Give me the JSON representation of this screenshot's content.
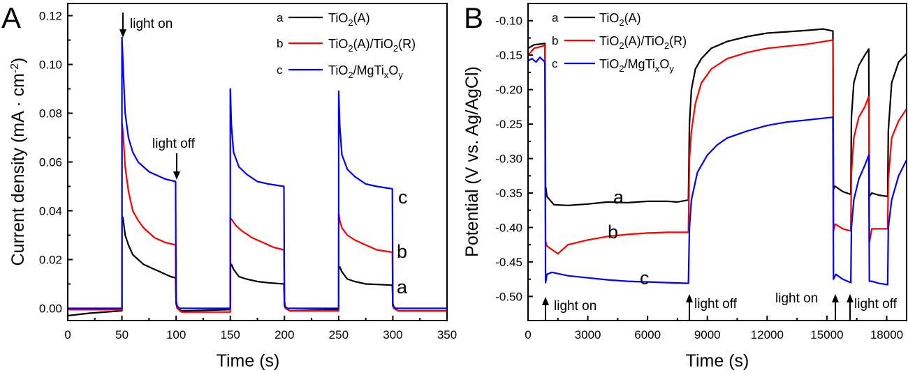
{
  "chart_data": [
    {
      "panel": "A",
      "type": "line",
      "xlabel": "Time (s)",
      "ylabel": "Current density (mA · cm",
      "ylabel_sup": "-2",
      "ylabel_end": ")",
      "xlim": [
        0,
        350
      ],
      "ylim": [
        -0.005,
        0.125
      ],
      "xticks": [
        "0",
        "50",
        "100",
        "150",
        "200",
        "250",
        "300",
        "350"
      ],
      "yticks": [
        "0.00",
        "0.02",
        "0.04",
        "0.06",
        "0.08",
        "0.10",
        "0.12"
      ],
      "legend": [
        {
          "key": "a",
          "base": "TiO",
          "sub1": "2",
          "tail": "(A)",
          "color": "#000000"
        },
        {
          "key": "b",
          "base": "TiO",
          "sub1": "2",
          "mid": "(A)/TiO",
          "sub2": "2",
          "tail": "(R)",
          "color": "#ff0000"
        },
        {
          "key": "c",
          "base": "TiO",
          "sub1": "2",
          "mid": "/MgTi",
          "sub2": "x",
          "mid2": "O",
          "sub3": "y",
          "color": "#0000ff"
        }
      ],
      "annotations": {
        "light_on": "light on",
        "light_off": "light off"
      },
      "curve_labels": [
        "a",
        "b",
        "c"
      ],
      "series": [
        {
          "name": "a",
          "color": "#000000",
          "x": [
            0,
            20,
            50,
            50,
            51,
            53,
            56,
            60,
            65,
            70,
            75,
            80,
            85,
            90,
            95,
            99.5,
            100,
            101,
            105,
            110,
            150,
            150,
            151,
            153,
            158,
            165,
            175,
            185,
            199.5,
            200,
            201,
            205,
            250,
            250,
            251,
            253,
            258,
            265,
            275,
            285,
            299.5,
            300,
            301,
            305,
            350
          ],
          "y": [
            -0.003,
            -0.002,
            -0.001,
            0.038,
            0.037,
            0.03,
            0.026,
            0.022,
            0.02,
            0.018,
            0.017,
            0.016,
            0.015,
            0.014,
            0.013,
            0.0125,
            0.002,
            0.0,
            -0.001,
            -0.001,
            -0.0005,
            0.017,
            0.018,
            0.016,
            0.013,
            0.012,
            0.011,
            0.0105,
            0.01,
            0.001,
            0.0,
            -0.001,
            -0.0005,
            0.016,
            0.017,
            0.015,
            0.012,
            0.011,
            0.01,
            0.0098,
            0.0095,
            0.001,
            0.0,
            -0.001,
            -0.001
          ]
        },
        {
          "name": "b",
          "color": "#ff0000",
          "x": [
            0,
            50,
            50,
            51,
            53,
            56,
            60,
            65,
            70,
            75,
            80,
            85,
            90,
            95,
            99.5,
            100,
            101,
            105,
            150,
            150,
            152,
            155,
            160,
            170,
            180,
            190,
            199.5,
            200,
            201,
            205,
            250,
            250,
            251,
            253,
            258,
            265,
            275,
            285,
            299.5,
            300,
            301,
            305,
            350
          ],
          "y": [
            -0.0005,
            -0.0005,
            0.076,
            0.072,
            0.058,
            0.048,
            0.04,
            0.036,
            0.033,
            0.031,
            0.029,
            0.028,
            0.027,
            0.0265,
            0.026,
            0.004,
            0.0,
            -0.0015,
            -0.0015,
            0.037,
            0.036,
            0.034,
            0.032,
            0.029,
            0.027,
            0.025,
            0.024,
            0.003,
            0.0,
            -0.001,
            -0.001,
            0.039,
            0.036,
            0.033,
            0.03,
            0.028,
            0.026,
            0.024,
            0.023,
            0.002,
            0.0,
            -0.001,
            -0.001
          ]
        },
        {
          "name": "c",
          "color": "#0000ff",
          "x": [
            0,
            50,
            50,
            51,
            53,
            56,
            60,
            65,
            70,
            75,
            80,
            85,
            90,
            95,
            99.5,
            100,
            101,
            103,
            150,
            150,
            151,
            153,
            158,
            165,
            175,
            185,
            199.5,
            200,
            201,
            203,
            250,
            250,
            251,
            253,
            258,
            265,
            275,
            285,
            299.5,
            300,
            301,
            303,
            350
          ],
          "y": [
            0.0,
            0.0,
            0.111,
            0.1,
            0.08,
            0.07,
            0.064,
            0.06,
            0.058,
            0.056,
            0.055,
            0.054,
            0.053,
            0.0525,
            0.052,
            0.003,
            0.001,
            0.0,
            0.0,
            0.09,
            0.075,
            0.064,
            0.058,
            0.055,
            0.052,
            0.051,
            0.05,
            0.002,
            0.0005,
            0.0,
            0.0,
            0.089,
            0.075,
            0.063,
            0.057,
            0.054,
            0.051,
            0.05,
            0.049,
            0.002,
            0.0005,
            0.0,
            0.0
          ]
        }
      ]
    },
    {
      "panel": "B",
      "type": "line",
      "xlabel": "Time (s)",
      "ylabel": "Potential (V vs. Ag/AgCl)",
      "xlim": [
        0,
        19000
      ],
      "ylim": [
        -0.535,
        -0.075
      ],
      "xticks": [
        "0",
        "3000",
        "6000",
        "9000",
        "12000",
        "15000",
        "18000"
      ],
      "yticks": [
        "-0.50",
        "-0.45",
        "-0.40",
        "-0.35",
        "-0.30",
        "-0.25",
        "-0.20",
        "-0.15",
        "-0.10"
      ],
      "legend": [
        {
          "key": "a",
          "base": "TiO",
          "sub1": "2",
          "tail": "(A)",
          "color": "#000000"
        },
        {
          "key": "b",
          "base": "TiO",
          "sub1": "2",
          "mid": "(A)/TiO",
          "sub2": "2",
          "tail": "(R)",
          "color": "#ff0000"
        },
        {
          "key": "c",
          "base": "TiO",
          "sub1": "2",
          "mid": "/MgTi",
          "sub2": "x",
          "mid2": "O",
          "sub3": "y",
          "color": "#0000ff"
        }
      ],
      "annotations": {
        "light_on_1": "light on",
        "light_off_1": "light off",
        "light_on_2": "light on",
        "light_off_2": "light off"
      },
      "curve_labels": [
        "a",
        "b",
        "c"
      ],
      "series": [
        {
          "name": "a",
          "color": "#000000",
          "x": [
            0,
            300,
            850,
            880,
            950,
            1300,
            2000,
            3000,
            4000,
            5000,
            6000,
            7000,
            7500,
            8050,
            8100,
            8200,
            8400,
            8700,
            9200,
            10000,
            11000,
            12000,
            13000,
            14000,
            14800,
            15300,
            15330,
            15400,
            15800,
            16200,
            16230,
            16350,
            16600,
            16900,
            17100,
            17130,
            17250,
            17600,
            18050,
            18080,
            18250,
            18600,
            19000
          ],
          "y": [
            -0.14,
            -0.135,
            -0.133,
            -0.34,
            -0.355,
            -0.367,
            -0.368,
            -0.366,
            -0.363,
            -0.364,
            -0.362,
            -0.362,
            -0.363,
            -0.36,
            -0.25,
            -0.2,
            -0.17,
            -0.155,
            -0.14,
            -0.13,
            -0.123,
            -0.118,
            -0.116,
            -0.114,
            -0.112,
            -0.115,
            -0.345,
            -0.34,
            -0.348,
            -0.352,
            -0.24,
            -0.19,
            -0.165,
            -0.15,
            -0.141,
            -0.355,
            -0.35,
            -0.353,
            -0.355,
            -0.26,
            -0.19,
            -0.16,
            -0.148
          ]
        },
        {
          "name": "b",
          "color": "#ff0000",
          "x": [
            0,
            300,
            850,
            880,
            950,
            1200,
            1500,
            2000,
            3000,
            4000,
            5000,
            6000,
            7000,
            8050,
            8100,
            8200,
            8400,
            8700,
            9200,
            10000,
            11000,
            12000,
            13000,
            14000,
            15300,
            15330,
            15420,
            15800,
            16200,
            16230,
            16350,
            16600,
            16900,
            17100,
            17130,
            17250,
            17600,
            18050,
            18080,
            18250,
            18600,
            19000
          ],
          "y": [
            -0.15,
            -0.14,
            -0.136,
            -0.42,
            -0.427,
            -0.432,
            -0.438,
            -0.425,
            -0.418,
            -0.413,
            -0.41,
            -0.408,
            -0.407,
            -0.407,
            -0.3,
            -0.26,
            -0.22,
            -0.19,
            -0.17,
            -0.155,
            -0.146,
            -0.14,
            -0.137,
            -0.134,
            -0.128,
            -0.405,
            -0.395,
            -0.402,
            -0.405,
            -0.32,
            -0.27,
            -0.24,
            -0.225,
            -0.21,
            -0.422,
            -0.402,
            -0.402,
            -0.402,
            -0.33,
            -0.27,
            -0.245,
            -0.228
          ]
        },
        {
          "name": "c",
          "color": "#0000ff",
          "x": [
            0,
            200,
            400,
            600,
            850,
            880,
            950,
            1200,
            2000,
            3000,
            4000,
            5000,
            6000,
            7000,
            8050,
            8100,
            8200,
            8500,
            9000,
            9500,
            10000,
            11000,
            12000,
            13000,
            14000,
            15300,
            15330,
            15450,
            15800,
            16200,
            16230,
            16350,
            16600,
            16900,
            17100,
            17130,
            17250,
            17600,
            18050,
            18080,
            18250,
            18600,
            19000
          ],
          "y": [
            -0.158,
            -0.155,
            -0.16,
            -0.153,
            -0.16,
            -0.48,
            -0.468,
            -0.465,
            -0.47,
            -0.473,
            -0.476,
            -0.478,
            -0.479,
            -0.48,
            -0.481,
            -0.4,
            -0.36,
            -0.32,
            -0.295,
            -0.28,
            -0.27,
            -0.26,
            -0.252,
            -0.247,
            -0.244,
            -0.24,
            -0.475,
            -0.468,
            -0.475,
            -0.48,
            -0.4,
            -0.36,
            -0.33,
            -0.31,
            -0.295,
            -0.478,
            -0.478,
            -0.481,
            -0.483,
            -0.4,
            -0.36,
            -0.325,
            -0.302
          ]
        }
      ]
    }
  ],
  "panel_letters": [
    "A",
    "B"
  ]
}
